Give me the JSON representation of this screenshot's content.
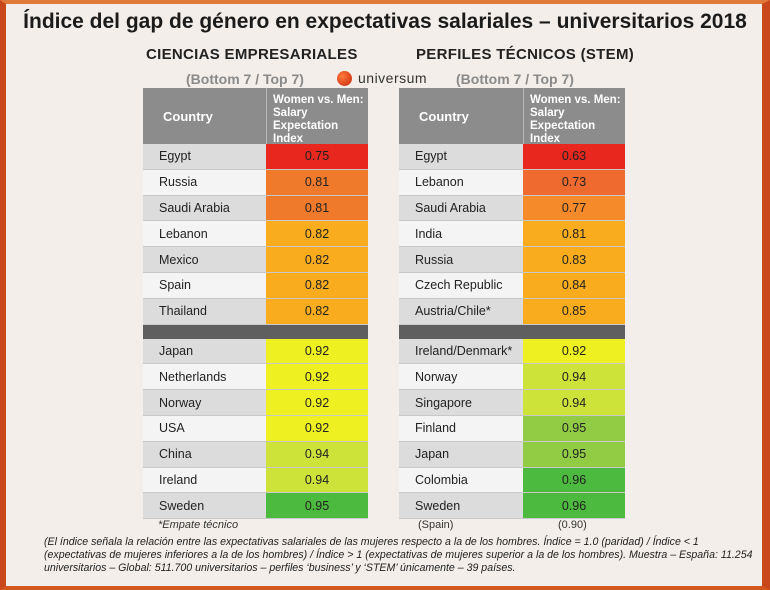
{
  "title": "Índice del gap de género en expectativas salariales – universitarios 2018",
  "logo_text": "universum",
  "footnote_tie": "*Empate técnico",
  "spain_label": "(Spain)",
  "spain_value": "(0.90)",
  "note": "(El índice señala la relación entre las expectativas salariales de las mujeres respecto a la de los hombres. Índice = 1.0 (paridad) / Índice < 1 (expectativas de mujeres inferiores a la de los hombres) / Índice > 1 (expectativas de mujeres superior a la de los hombres). Muestra – España: 11.254 universitarios – Global: 511.700 universitarios – perfiles ‘business’ y ‘STEM’ únicamente – 39 países.",
  "chart_data": [
    {
      "type": "table",
      "subtitle": "CIENCIAS  EMPRESARIALES",
      "group_label": "(Bottom 7 / Top 7)",
      "columns": [
        "Country",
        "Women vs. Men: Salary Expectation Index"
      ],
      "bottom": [
        {
          "country": "Egypt",
          "value": "0.75",
          "color": "#e8271e"
        },
        {
          "country": "Russia",
          "value": "0.81",
          "color": "#f07a2c"
        },
        {
          "country": "Saudi Arabia",
          "value": "0.81",
          "color": "#f07a2c"
        },
        {
          "country": "Lebanon",
          "value": "0.82",
          "color": "#f9ad1e"
        },
        {
          "country": "Mexico",
          "value": "0.82",
          "color": "#f9ad1e"
        },
        {
          "country": "Spain",
          "value": "0.82",
          "color": "#f9ad1e"
        },
        {
          "country": "Thailand",
          "value": "0.82",
          "color": "#f9ad1e"
        }
      ],
      "top": [
        {
          "country": "Japan",
          "value": "0.92",
          "color": "#eef021"
        },
        {
          "country": "Netherlands",
          "value": "0.92",
          "color": "#eef021"
        },
        {
          "country": "Norway",
          "value": "0.92",
          "color": "#eef021"
        },
        {
          "country": "USA",
          "value": "0.92",
          "color": "#eef021"
        },
        {
          "country": "China",
          "value": "0.94",
          "color": "#cde33a"
        },
        {
          "country": "Ireland",
          "value": "0.94",
          "color": "#cde33a"
        },
        {
          "country": "Sweden",
          "value": "0.95",
          "color": "#4cba3e"
        }
      ]
    },
    {
      "type": "table",
      "subtitle": "PERFILES  TÉCNICOS  (STEM)",
      "group_label": "(Bottom 7 / Top 7)",
      "columns": [
        "Country",
        "Women vs. Men: Salary Expectation Index"
      ],
      "bottom": [
        {
          "country": "Egypt",
          "value": "0.63",
          "color": "#e8271e"
        },
        {
          "country": "Lebanon",
          "value": "0.73",
          "color": "#ef6a2e"
        },
        {
          "country": "Saudi Arabia",
          "value": "0.77",
          "color": "#f58a2a"
        },
        {
          "country": "India",
          "value": "0.81",
          "color": "#f9ad1e"
        },
        {
          "country": "Russia",
          "value": "0.83",
          "color": "#f9ad1e"
        },
        {
          "country": "Czech Republic",
          "value": "0.84",
          "color": "#f9ad1e"
        },
        {
          "country": "Austria/Chile*",
          "value": "0.85",
          "color": "#f9ad1e"
        }
      ],
      "top": [
        {
          "country": "Ireland/Denmark*",
          "value": "0.92",
          "color": "#eef021"
        },
        {
          "country": "Norway",
          "value": "0.94",
          "color": "#cde33a"
        },
        {
          "country": "Singapore",
          "value": "0.94",
          "color": "#cde33a"
        },
        {
          "country": "Finland",
          "value": "0.95",
          "color": "#92cc44"
        },
        {
          "country": "Japan",
          "value": "0.95",
          "color": "#92cc44"
        },
        {
          "country": "Colombia",
          "value": "0.96",
          "color": "#4cba3e"
        },
        {
          "country": "Sweden",
          "value": "0.96",
          "color": "#4cba3e"
        }
      ]
    }
  ]
}
